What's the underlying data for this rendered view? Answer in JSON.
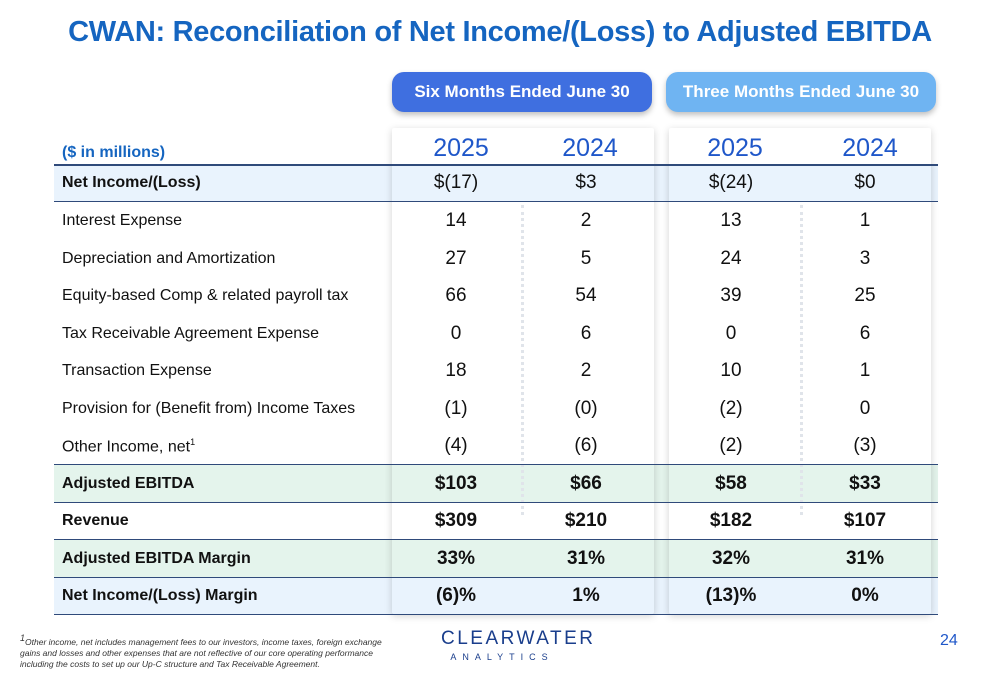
{
  "title": "CWAN:  Reconciliation of Net Income/(Loss) to Adjusted EBITDA",
  "periods": {
    "six": "Six Months Ended June 30",
    "three": "Three Months Ended June 30"
  },
  "units": "($ in millions)",
  "years": [
    "2025",
    "2024",
    "2025",
    "2024"
  ],
  "rows": [
    {
      "label": "Net Income/(Loss)",
      "values": [
        "$(17)",
        "$3",
        "$(24)",
        "$0"
      ]
    },
    {
      "label": "Interest Expense",
      "values": [
        "14",
        "2",
        "13",
        "1"
      ]
    },
    {
      "label": "Depreciation and Amortization",
      "values": [
        "27",
        "5",
        "24",
        "3"
      ]
    },
    {
      "label": "Equity-based Comp & related payroll tax",
      "values": [
        "66",
        "54",
        "39",
        "25"
      ]
    },
    {
      "label": "Tax Receivable Agreement Expense",
      "values": [
        "0",
        "6",
        "0",
        "6"
      ]
    },
    {
      "label": "Transaction Expense",
      "values": [
        "18",
        "2",
        "10",
        "1"
      ]
    },
    {
      "label": "Provision for (Benefit from) Income Taxes",
      "values": [
        "(1)",
        "(0)",
        "(2)",
        "0"
      ]
    },
    {
      "label": "Other Income, net",
      "footnote_mark": "1",
      "values": [
        "(4)",
        "(6)",
        "(2)",
        "(3)"
      ]
    },
    {
      "label": "Adjusted EBITDA",
      "values": [
        "$103",
        "$66",
        "$58",
        "$33"
      ]
    },
    {
      "label": "Revenue",
      "values": [
        "$309",
        "$210",
        "$182",
        "$107"
      ]
    },
    {
      "label": "Adjusted EBITDA Margin",
      "values": [
        "33%",
        "31%",
        "32%",
        "31%"
      ]
    },
    {
      "label": "Net Income/(Loss) Margin",
      "values": [
        "(6)%",
        "1%",
        "(13)%",
        "0%"
      ]
    }
  ],
  "footnote_mark": "1",
  "footnote": "Other income, net includes management fees to our investors, income taxes, foreign exchange gains and losses and other expenses that are not reflective of our core operating performance including the costs to set up our Up-C structure and Tax Receivable Agreement.",
  "logo": {
    "top": "CLEARWATER",
    "bottom": "ANALYTICS"
  },
  "page_number": "24",
  "colors": {
    "title": "#1565c0",
    "pill_six": "#3f6fe0",
    "pill_three": "#6fb4f2",
    "band_blue": "#e9f3fd",
    "band_green": "#e4f4ec"
  }
}
